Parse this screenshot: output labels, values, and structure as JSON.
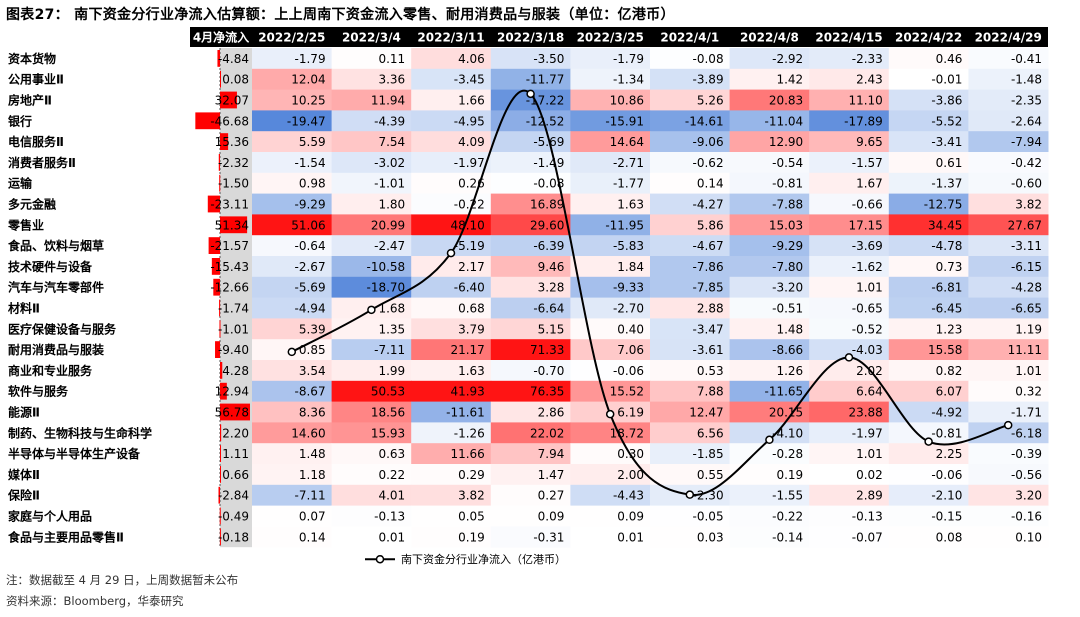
{
  "title": "图表27： 南下资金分行业净流入估算额：上上周南下资金流入零售、耐用消费品与服装（单位：亿港币）",
  "note": "注：数据截至 4 月 29 日，上周数据暂未公布",
  "source": "资料来源：Bloomberg，华泰研究",
  "chart_data": {
    "type": "table",
    "title": "图表27： 南下资金分行业净流入估算额：上上周南下资金流入零售、耐用消费品与服装（单位：亿港币）",
    "columns": [
      "4月净流入",
      "2022/2/25",
      "2022/3/4",
      "2022/3/11",
      "2022/3/18",
      "2022/3/25",
      "2022/4/1",
      "2022/4/8",
      "2022/4/15",
      "2022/4/22",
      "2022/4/29"
    ],
    "rows": [
      {
        "name": "资本货物",
        "values": [
          "-4.84",
          "-1.79",
          "0.11",
          "4.06",
          "-3.50",
          "-1.79",
          "-0.08",
          "-2.92",
          "-2.33",
          "0.46",
          "-0.41"
        ]
      },
      {
        "name": "公用事业Ⅱ",
        "values": [
          "0.08",
          "12.04",
          "3.36",
          "-3.45",
          "-11.77",
          "-1.34",
          "-3.89",
          "1.42",
          "2.43",
          "-0.01",
          "-1.48"
        ]
      },
      {
        "name": "房地产Ⅱ",
        "values": [
          "32.07",
          "10.25",
          "11.94",
          "1.66",
          "-17.22",
          "10.86",
          "5.26",
          "20.83",
          "11.10",
          "-3.86",
          "-2.35"
        ]
      },
      {
        "name": "银行",
        "values": [
          "-46.68",
          "-19.47",
          "-4.39",
          "-4.95",
          "-12.52",
          "-15.91",
          "-14.61",
          "-11.04",
          "-17.89",
          "-5.52",
          "-2.64"
        ]
      },
      {
        "name": "电信服务Ⅱ",
        "values": [
          "15.36",
          "5.59",
          "7.54",
          "4.09",
          "-5.69",
          "14.64",
          "-9.06",
          "12.90",
          "9.65",
          "-3.41",
          "-7.94"
        ]
      },
      {
        "name": "消费者服务Ⅱ",
        "values": [
          "-2.32",
          "-1.54",
          "-3.02",
          "-1.97",
          "-1.49",
          "-2.71",
          "-0.62",
          "-0.54",
          "-1.57",
          "0.61",
          "-0.42"
        ]
      },
      {
        "name": "运输",
        "values": [
          "-1.50",
          "0.98",
          "-1.01",
          "0.26",
          "-0.08",
          "-1.77",
          "0.14",
          "-0.81",
          "1.67",
          "-1.37",
          "-0.60"
        ]
      },
      {
        "name": "多元金融",
        "values": [
          "-23.11",
          "-9.29",
          "1.80",
          "-0.22",
          "16.89",
          "1.63",
          "-4.27",
          "-7.88",
          "-0.66",
          "-12.75",
          "3.82"
        ]
      },
      {
        "name": "零售业",
        "values": [
          "51.34",
          "51.06",
          "20.99",
          "48.10",
          "29.60",
          "-11.95",
          "5.86",
          "15.03",
          "17.15",
          "34.45",
          "27.67"
        ]
      },
      {
        "name": "食品、饮料与烟草",
        "values": [
          "-21.57",
          "-0.64",
          "-2.47",
          "-5.19",
          "-6.39",
          "-5.83",
          "-4.67",
          "-9.29",
          "-3.69",
          "-4.78",
          "-3.11"
        ]
      },
      {
        "name": "技术硬件与设备",
        "values": [
          "-15.43",
          "-2.67",
          "-10.58",
          "2.17",
          "9.46",
          "1.84",
          "-7.86",
          "-7.80",
          "-1.62",
          "0.73",
          "-6.15"
        ]
      },
      {
        "name": "汽车与汽车零部件",
        "values": [
          "-12.66",
          "-5.69",
          "-18.70",
          "-6.40",
          "3.28",
          "-9.33",
          "-7.85",
          "-3.20",
          "1.01",
          "-6.81",
          "-4.28"
        ]
      },
      {
        "name": "材料Ⅱ",
        "values": [
          "-1.74",
          "-4.94",
          "1.68",
          "0.68",
          "-6.64",
          "-2.70",
          "2.88",
          "-0.51",
          "-0.65",
          "-6.45",
          "-6.65"
        ]
      },
      {
        "name": "医疗保健设备与服务",
        "values": [
          "-1.01",
          "5.39",
          "1.35",
          "3.79",
          "5.15",
          "0.40",
          "-3.47",
          "1.48",
          "-0.52",
          "1.23",
          "1.19"
        ]
      },
      {
        "name": "耐用消费品与服装",
        "values": [
          "-9.40",
          "0.85",
          "-7.11",
          "21.17",
          "71.33",
          "7.06",
          "-3.61",
          "-8.66",
          "-4.03",
          "15.58",
          "11.11"
        ]
      },
      {
        "name": "商业和专业服务",
        "values": [
          "4.28",
          "3.54",
          "1.99",
          "1.63",
          "-0.70",
          "-0.06",
          "0.53",
          "1.26",
          "2.02",
          "0.82",
          "1.01"
        ]
      },
      {
        "name": "软件与服务",
        "values": [
          "12.94",
          "-8.67",
          "50.53",
          "41.93",
          "76.35",
          "15.52",
          "7.88",
          "-11.65",
          "6.64",
          "6.07",
          "0.32"
        ]
      },
      {
        "name": "能源Ⅱ",
        "values": [
          "56.78",
          "8.36",
          "18.56",
          "-11.61",
          "2.86",
          "6.19",
          "12.47",
          "20.15",
          "23.88",
          "-4.92",
          "-1.71"
        ]
      },
      {
        "name": "制药、生物科技与生命科学",
        "values": [
          "2.20",
          "14.60",
          "15.93",
          "-1.26",
          "22.02",
          "18.72",
          "6.56",
          "-4.10",
          "-1.97",
          "-0.81",
          "-6.18"
        ]
      },
      {
        "name": "半导体与半导体生产设备",
        "values": [
          "1.11",
          "1.48",
          "0.63",
          "11.66",
          "7.94",
          "0.30",
          "-1.85",
          "-0.28",
          "1.01",
          "2.25",
          "-0.39"
        ]
      },
      {
        "name": "媒体Ⅱ",
        "values": [
          "0.66",
          "1.18",
          "0.22",
          "0.29",
          "1.47",
          "2.00",
          "0.55",
          "0.19",
          "0.02",
          "-0.06",
          "-0.56"
        ]
      },
      {
        "name": "保险Ⅱ",
        "values": [
          "-2.84",
          "-7.11",
          "4.01",
          "3.82",
          "0.27",
          "-4.43",
          "-2.30",
          "-1.55",
          "2.89",
          "-2.10",
          "3.20"
        ]
      },
      {
        "name": "家庭与个人用品",
        "values": [
          "-0.49",
          "0.07",
          "-0.13",
          "0.05",
          "0.09",
          "0.09",
          "-0.05",
          "-0.22",
          "-0.13",
          "-0.15",
          "-0.16"
        ]
      },
      {
        "name": "食品与主要用品零售Ⅱ",
        "values": [
          "-0.18",
          "0.14",
          "0.01",
          "0.19",
          "-0.31",
          "0.01",
          "0.03",
          "-0.14",
          "-0.07",
          "0.08",
          "0.10"
        ]
      }
    ],
    "overlay_line": {
      "name": "南下资金分行业净流入（亿港币）",
      "type": "line",
      "x": [
        "2022/2/25",
        "2022/3/4",
        "2022/3/11",
        "2022/3/18",
        "2022/3/25",
        "2022/4/1",
        "2022/4/8",
        "2022/4/15",
        "2022/4/22",
        "2022/4/29"
      ],
      "values": [
        -90,
        25,
        180,
        615,
        -260,
        -480,
        -330,
        -105,
        -335,
        -290
      ]
    },
    "colors": {
      "positive_max": "#ff0000",
      "negative_max": "#4a7fd8",
      "neutral": "#ffffff",
      "header_bg": "#000000",
      "first_col_bg": "#d9d9d9",
      "first_col_bar_pos": "#ff0000",
      "first_col_bar_neg": "#ff0000",
      "line": "#000000"
    }
  }
}
